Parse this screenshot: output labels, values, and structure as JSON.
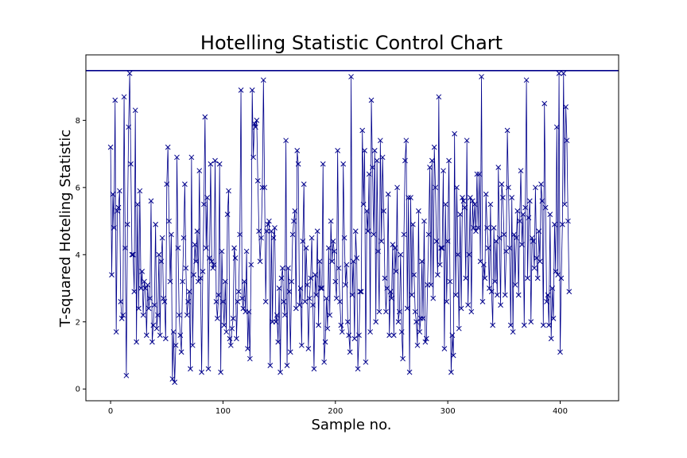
{
  "chart_data": {
    "type": "line",
    "title": "Hotelling Statistic Control Chart",
    "xlabel": "Sample no.",
    "ylabel": "T-squared Hoteling Statistic",
    "xlim": [
      -22,
      452
    ],
    "ylim": [
      -0.35,
      9.95
    ],
    "x_ticks": [
      0,
      100,
      200,
      300,
      400
    ],
    "y_ticks": [
      0,
      2,
      4,
      6,
      8
    ],
    "control_limit": 9.48,
    "series_color": "#00008b",
    "limit_color": "#00008b",
    "marker": "x",
    "grid": false,
    "series": [
      {
        "values": [
          7.2,
          3.4,
          5.8,
          4.8,
          8.6,
          1.7,
          5.3,
          5.4,
          5.9,
          2.6,
          2.1,
          2.2,
          8.7,
          4.2,
          0.4,
          4.9,
          7.8,
          9.4,
          6.7,
          4.0,
          4.0,
          2.9,
          8.3,
          1.4,
          5.5,
          2.4,
          5.9,
          3.0,
          3.5,
          2.2,
          3.2,
          3.0,
          1.6,
          3.1,
          2.4,
          2.7,
          5.6,
          1.4,
          1.9,
          2.5,
          4.9,
          1.8,
          2.2,
          4.0,
          1.6,
          3.8,
          4.5,
          2.7,
          2.6,
          1.5,
          6.1,
          7.2,
          5.0,
          3.2,
          4.6,
          0.3,
          1.7,
          0.2,
          1.3,
          6.9,
          4.2,
          2.2,
          1.6,
          1.1,
          3.2,
          4.5,
          6.1,
          3.6,
          2.2,
          2.6,
          2.9,
          0.6,
          6.9,
          1.3,
          3.4,
          4.3,
          3.8,
          4.7,
          3.2,
          6.5,
          3.3,
          0.5,
          3.5,
          5.5,
          8.1,
          4.2,
          5.7,
          0.6,
          3.9,
          6.7,
          3.8,
          3.6,
          3.7,
          6.8,
          2.6,
          2.1,
          2.8,
          6.7,
          0.5,
          4.1,
          2.6,
          1.9,
          3.2,
          1.7,
          5.2,
          5.9,
          1.5,
          1.3,
          1.8,
          2.1,
          4.2,
          3.9,
          1.5,
          2.6,
          2.9,
          4.6,
          8.9,
          2.7,
          2.4,
          3.2,
          2.3,
          4.1,
          1.2,
          2.3,
          0.9,
          3.7,
          8.9,
          6.9,
          7.9,
          7.8,
          8.0,
          6.2,
          4.7,
          3.8,
          4.5,
          6.0,
          9.2,
          6.0,
          2.6,
          4.7,
          4.9,
          5.0,
          0.7,
          4.7,
          2.0,
          4.5,
          4.8,
          2.0,
          2.2,
          1.4,
          3.0,
          0.5,
          3.3,
          3.6,
          2.6,
          2.2,
          7.4,
          0.7,
          3.6,
          2.9,
          1.1,
          3.2,
          4.6,
          5.0,
          5.3,
          2.4,
          7.1,
          6.7,
          2.5,
          3.0,
          1.3,
          4.4,
          6.1,
          2.6,
          4.2,
          3.1,
          1.2,
          2.7,
          3.3,
          4.5,
          2.5,
          0.6,
          3.4,
          2.8,
          4.7,
          1.9,
          3.8,
          3.0,
          3.0,
          6.7,
          0.8,
          1.4,
          2.7,
          1.8,
          4.2,
          2.2,
          5.0,
          3.8,
          4.4,
          4.1,
          3.2,
          2.7,
          7.1,
          3.6,
          2.6,
          1.9,
          1.7,
          6.7,
          4.5,
          3.1,
          3.7,
          2.0,
          1.6,
          1.1,
          9.3,
          2.8,
          3.8,
          1.5,
          4.7,
          3.9,
          0.6,
          1.6,
          2.9,
          2.9,
          7.7,
          5.5,
          7.1,
          0.8,
          5.3,
          4.7,
          6.4,
          1.7,
          8.6,
          6.6,
          4.6,
          7.1,
          2.0,
          6.8,
          4.1,
          2.3,
          7.4,
          4.4,
          6.9,
          5.3,
          3.3,
          2.3,
          3.0,
          5.8,
          1.6,
          2.9,
          2.7,
          4.3,
          1.6,
          4.2,
          3.5,
          6.0,
          2.0,
          2.3,
          4.0,
          1.7,
          0.9,
          4.6,
          6.8,
          7.4,
          2.4,
          5.7,
          0.5,
          5.7,
          2.8,
          4.9,
          3.4,
          2.3,
          2.0,
          1.3,
          5.3,
          1.7,
          2.1,
          3.8,
          2.1,
          5.0,
          1.4,
          1.5,
          3.1,
          4.6,
          6.6,
          3.1,
          6.8,
          2.7,
          7.2,
          6.0,
          4.4,
          3.4,
          8.7,
          3.7,
          4.2,
          4.2,
          6.5,
          1.2,
          5.5,
          2.6,
          4.4,
          6.8,
          3.2,
          0.5,
          1.6,
          1.0,
          7.6,
          2.8,
          6.0,
          4.0,
          1.8,
          5.2,
          2.4,
          5.7,
          5.6,
          5.4,
          3.3,
          7.4,
          2.5,
          4.0,
          5.7,
          2.3,
          5.6,
          4.8,
          5.5,
          4.7,
          6.4,
          4.8,
          6.4,
          3.8,
          9.3,
          2.6,
          3.7,
          3.3,
          5.8,
          4.8,
          4.2,
          3.0,
          5.5,
          2.9,
          1.9,
          4.8,
          3.2,
          4.4,
          2.8,
          6.6,
          4.5,
          2.5,
          6.1,
          5.7,
          4.6,
          2.8,
          4.1,
          7.7,
          6.0,
          4.2,
          1.9,
          5.7,
          1.7,
          4.6,
          3.1,
          4.5,
          5.3,
          2.8,
          5.0,
          6.5,
          4.3,
          5.2,
          1.9,
          5.4,
          9.2,
          3.3,
          5.1,
          5.6,
          2.0,
          4.5,
          4.4,
          3.6,
          6.0,
          3.9,
          3.3,
          4.7,
          3.8,
          6.1,
          5.6,
          1.9,
          8.5,
          5.4,
          2.6,
          2.8,
          1.9,
          5.2,
          1.5,
          3.0,
          2.1,
          4.9,
          3.5,
          7.8,
          3.4,
          9.4,
          1.1,
          3.3,
          4.9,
          9.4,
          5.5,
          8.4,
          7.4,
          5.0,
          2.9
        ]
      }
    ]
  }
}
